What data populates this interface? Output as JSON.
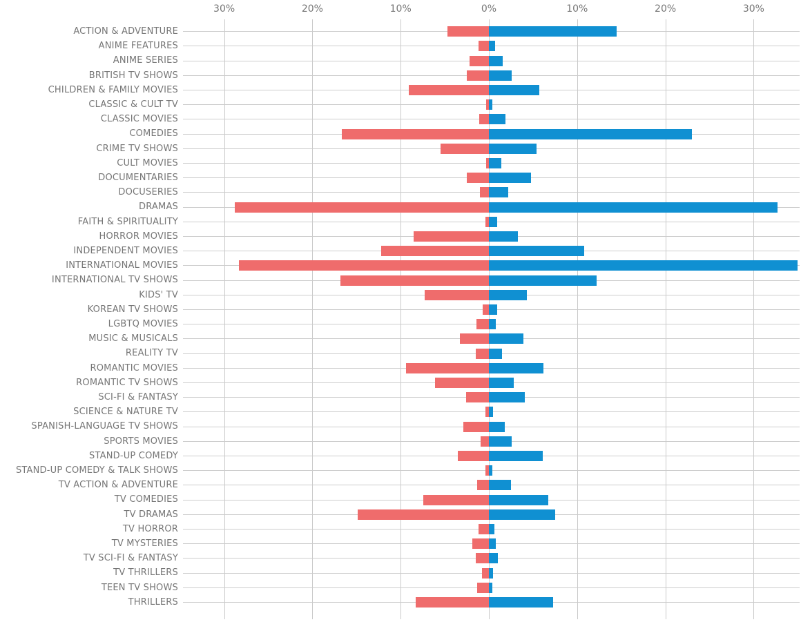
{
  "colors": {
    "bar_left": "#EF6C6C",
    "bar_right": "#1090D2",
    "gridline": "#C9C9C9",
    "row_line": "#CCCCCC",
    "text": "#767676",
    "background": "#FFFFFF"
  },
  "chart_data": {
    "type": "bar",
    "subtype": "diverging-horizontal",
    "title": "",
    "xlabel": "",
    "ylabel": "",
    "grid": true,
    "legend": "none",
    "x_axis": {
      "position": "top",
      "unit": "%",
      "ticks": [
        "30%",
        "20%",
        "10%",
        "0%",
        "10%",
        "20%",
        "30%"
      ],
      "tick_values": [
        -30,
        -20,
        -10,
        0,
        10,
        20,
        30
      ],
      "range": [
        -34.7,
        35.2
      ]
    },
    "categories": [
      "ACTION & ADVENTURE",
      "ANIME FEATURES",
      "ANIME SERIES",
      "BRITISH TV SHOWS",
      "CHILDREN & FAMILY MOVIES",
      "CLASSIC & CULT TV",
      "CLASSIC MOVIES",
      "COMEDIES",
      "CRIME TV SHOWS",
      "CULT MOVIES",
      "DOCUMENTARIES",
      "DOCUSERIES",
      "DRAMAS",
      "FAITH & SPIRITUALITY",
      "HORROR MOVIES",
      "INDEPENDENT MOVIES",
      "INTERNATIONAL MOVIES",
      "INTERNATIONAL TV SHOWS",
      "KIDS' TV",
      "KOREAN TV SHOWS",
      "LGBTQ MOVIES",
      "MUSIC & MUSICALS",
      "REALITY TV",
      "ROMANTIC MOVIES",
      "ROMANTIC TV SHOWS",
      "SCI-FI & FANTASY",
      "SCIENCE & NATURE TV",
      "SPANISH-LANGUAGE TV SHOWS",
      "SPORTS MOVIES",
      "STAND-UP COMEDY",
      "STAND-UP COMEDY & TALK SHOWS",
      "TV ACTION & ADVENTURE",
      "TV COMEDIES",
      "TV DRAMAS",
      "TV HORROR",
      "TV MYSTERIES",
      "TV SCI-FI & FANTASY",
      "TV THRILLERS",
      "TEEN TV SHOWS",
      "THRILLERS"
    ],
    "series": [
      {
        "name": "left (red)",
        "direction": "left",
        "color": "#EF6C6C",
        "values": [
          4.7,
          1.2,
          2.2,
          2.5,
          9.1,
          0.3,
          1.1,
          16.7,
          5.5,
          0.3,
          2.5,
          1.0,
          28.8,
          0.4,
          8.5,
          12.2,
          28.3,
          16.8,
          7.3,
          0.7,
          1.4,
          3.3,
          1.5,
          9.4,
          6.1,
          2.6,
          0.4,
          2.9,
          0.9,
          3.5,
          0.4,
          1.3,
          7.4,
          14.9,
          1.2,
          1.9,
          1.5,
          0.8,
          1.3,
          8.3
        ]
      },
      {
        "name": "right (blue)",
        "direction": "right",
        "color": "#1090D2",
        "values": [
          14.5,
          0.7,
          1.6,
          2.6,
          5.7,
          0.4,
          1.9,
          23.0,
          5.4,
          1.4,
          4.8,
          2.2,
          32.7,
          0.9,
          3.3,
          10.8,
          35.0,
          12.2,
          4.3,
          0.9,
          0.8,
          3.9,
          1.5,
          6.2,
          2.8,
          4.1,
          0.5,
          1.8,
          2.6,
          6.1,
          0.4,
          2.5,
          6.7,
          7.5,
          0.6,
          0.8,
          1.0,
          0.5,
          0.4,
          7.3
        ]
      }
    ]
  }
}
